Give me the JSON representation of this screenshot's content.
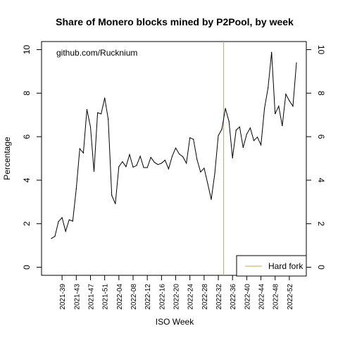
{
  "chart_data": {
    "type": "line",
    "title": "Share of Monero blocks mined by P2Pool, by week",
    "xlabel": "ISO Week",
    "ylabel": "Percentage",
    "annotation": "github.com/Rucknium",
    "ylim": [
      0,
      10
    ],
    "yticks": [
      0,
      2,
      4,
      6,
      8,
      10
    ],
    "x_tick_labels": [
      "2021-39",
      "2021-43",
      "2021-47",
      "2021-51",
      "2022-04",
      "2022-08",
      "2022-12",
      "2022-16",
      "2022-20",
      "2022-24",
      "2022-28",
      "2022-32",
      "2022-36",
      "2022-40",
      "2022-44",
      "2022-48",
      "2022-52"
    ],
    "x_tick_positions": [
      4,
      8,
      12,
      16,
      20,
      24,
      28,
      32,
      36,
      40,
      44,
      48,
      52,
      56,
      60,
      64,
      68
    ],
    "grid": false,
    "legend_position": "bottom-right",
    "series": [
      {
        "values": [
          1.32,
          1.42,
          2.1,
          2.28,
          1.65,
          2.18,
          2.12,
          3.6,
          5.45,
          5.25,
          7.25,
          6.45,
          4.4,
          7.1,
          7.05,
          7.78,
          6.8,
          3.3,
          2.92,
          4.62,
          4.85,
          4.62,
          5.18,
          4.6,
          4.68,
          5.1,
          4.58,
          4.58,
          5.05,
          4.82,
          4.72,
          4.78,
          4.92,
          4.52,
          5.1,
          5.48,
          5.2,
          5.08,
          4.78,
          5.95,
          5.88,
          4.95,
          4.38,
          4.55,
          3.85,
          3.12,
          4.3,
          6.05,
          6.35,
          7.3,
          6.7,
          5.02,
          6.3,
          6.45,
          5.5,
          6.12,
          6.4,
          5.82,
          5.98,
          5.62,
          7.3,
          8.25,
          9.88,
          7.05,
          7.4,
          6.5,
          7.95,
          7.65,
          7.4,
          9.4
        ]
      }
    ],
    "vertical_lines": [
      {
        "name": "Hard fork",
        "x": 49.5,
        "color": "#D4A04E"
      }
    ],
    "legend": [
      {
        "label": "Hard fork",
        "color": "#D4A04E"
      }
    ]
  }
}
